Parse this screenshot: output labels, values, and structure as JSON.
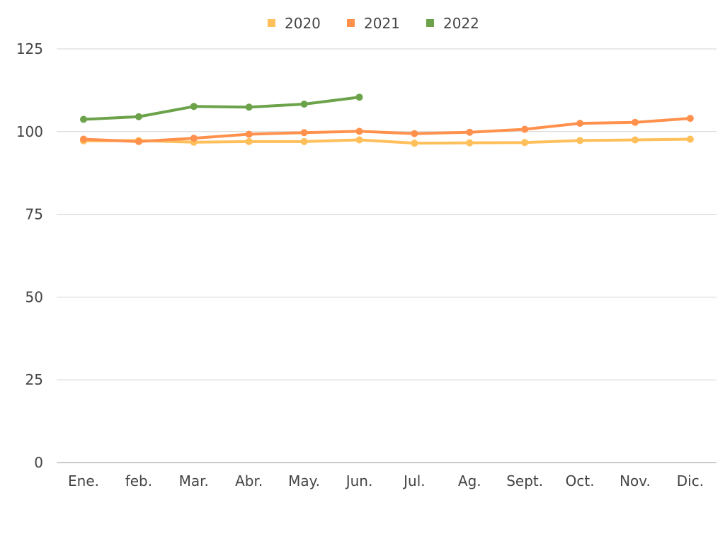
{
  "chart_data": {
    "type": "line",
    "categories": [
      "Ene.",
      "feb.",
      "Mar.",
      "Abr.",
      "May.",
      "Jun.",
      "Jul.",
      "Ag.",
      "Sept.",
      "Oct.",
      "Nov.",
      "Dic."
    ],
    "series": [
      {
        "name": "2020",
        "color": "#ffbf5a",
        "values": [
          97.2,
          97.3,
          96.8,
          97.0,
          97.0,
          97.5,
          96.5,
          96.6,
          96.7,
          97.3,
          97.5,
          97.7
        ]
      },
      {
        "name": "2021",
        "color": "#ff914d",
        "values": [
          97.7,
          97.0,
          98.0,
          99.2,
          99.7,
          100.1,
          99.4,
          99.8,
          100.7,
          102.5,
          102.8,
          104.0
        ]
      },
      {
        "name": "2022",
        "color": "#6ba24a",
        "values": [
          103.7,
          104.5,
          107.6,
          107.4,
          108.3,
          110.4,
          null,
          null,
          null,
          null,
          null,
          null
        ]
      }
    ],
    "yticks": [
      0,
      25,
      50,
      75,
      100,
      125
    ],
    "ylim": [
      0,
      125
    ],
    "grid": true,
    "legend": "top-center",
    "title": "",
    "xlabel": "",
    "ylabel": ""
  }
}
